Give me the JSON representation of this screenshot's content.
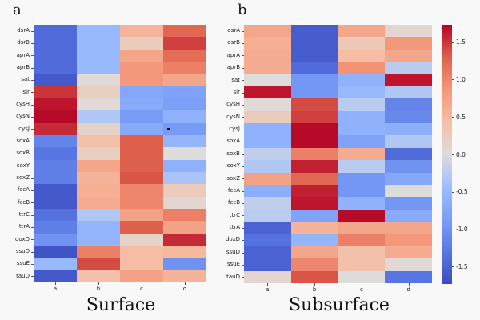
{
  "figure": {
    "background": "#f8f8f8"
  },
  "chart_data": [
    {
      "type": "heatmap",
      "panel_label": "a",
      "title": "Surface",
      "columns": [
        "a",
        "b",
        "c",
        "d"
      ],
      "rows": [
        "dsrA",
        "dsrB",
        "aprA",
        "aprB",
        "sat",
        "sir",
        "cysH",
        "cysN",
        "cysJ",
        "soxA",
        "soxB",
        "soxY",
        "soxZ",
        "fccA",
        "fccB",
        "ttrC",
        "ttrA",
        "doxD",
        "ssuD",
        "ssuE",
        "tauD"
      ],
      "values": [
        [
          -1.4,
          -0.5,
          0.55,
          1.25
        ],
        [
          -1.4,
          -0.5,
          0.25,
          1.45
        ],
        [
          -1.4,
          -0.5,
          0.7,
          1.2
        ],
        [
          -1.4,
          -0.5,
          0.85,
          1.05
        ],
        [
          -1.6,
          0.05,
          0.85,
          0.7
        ],
        [
          1.5,
          0.2,
          -0.75,
          -0.8
        ],
        [
          1.65,
          0.05,
          -0.7,
          -0.85
        ],
        [
          1.7,
          -0.3,
          -0.9,
          -0.6
        ],
        [
          1.55,
          0.15,
          -0.7,
          -0.9
        ],
        [
          -1.15,
          0.4,
          1.3,
          -0.55
        ],
        [
          -1.3,
          0.2,
          1.3,
          0.0
        ],
        [
          -1.2,
          0.7,
          1.3,
          -0.6
        ],
        [
          -1.2,
          0.55,
          1.35,
          -0.35
        ],
        [
          -1.6,
          0.6,
          1.0,
          0.25
        ],
        [
          -1.6,
          0.65,
          1.0,
          0.1
        ],
        [
          -1.35,
          -0.3,
          0.75,
          1.05
        ],
        [
          -1.2,
          -0.55,
          1.3,
          0.75
        ],
        [
          -1.0,
          -0.55,
          0.15,
          1.55
        ],
        [
          -1.65,
          1.05,
          0.45,
          0.5
        ],
        [
          -0.5,
          1.4,
          0.45,
          -1.0
        ],
        [
          -1.6,
          0.4,
          0.75,
          0.55
        ]
      ],
      "colormap": "coolwarm",
      "vmin": -1.73,
      "vmax": 1.73,
      "marker_dot": {
        "row": "cysJ",
        "column": "d"
      }
    },
    {
      "type": "heatmap",
      "panel_label": "b",
      "title": "Subsurface",
      "columns": [
        "a",
        "b",
        "c",
        "d"
      ],
      "rows": [
        "dsrA",
        "dsrB",
        "aprA",
        "aprB",
        "sat",
        "sir",
        "cysH",
        "cysN",
        "cysJ",
        "soxA",
        "soxB",
        "soxY",
        "soxZ",
        "fccA",
        "fccB",
        "ttrC",
        "ttrA",
        "doxD",
        "ssuD",
        "ssuE",
        "tauD"
      ],
      "values": [
        [
          0.7,
          -1.55,
          0.7,
          0.1
        ],
        [
          0.6,
          -1.55,
          0.3,
          0.85
        ],
        [
          0.65,
          -1.55,
          0.45,
          0.7
        ],
        [
          0.65,
          -1.4,
          0.9,
          -0.25
        ],
        [
          0.0,
          -0.95,
          -0.6,
          1.65
        ],
        [
          1.65,
          -0.95,
          -0.5,
          -0.3
        ],
        [
          0.05,
          1.4,
          -0.25,
          -1.15
        ],
        [
          0.25,
          1.45,
          -0.6,
          -1.1
        ],
        [
          -0.6,
          1.7,
          -0.6,
          -0.65
        ],
        [
          -0.6,
          1.7,
          -0.8,
          -0.3
        ],
        [
          -0.2,
          1.05,
          0.65,
          -1.4
        ],
        [
          -0.3,
          1.6,
          -0.25,
          -1.0
        ],
        [
          0.75,
          1.25,
          -0.95,
          -0.75
        ],
        [
          -0.65,
          1.6,
          -0.95,
          0.0
        ],
        [
          -0.2,
          1.65,
          -0.6,
          -0.95
        ],
        [
          -0.25,
          -0.8,
          1.7,
          -0.7
        ],
        [
          -1.5,
          0.55,
          0.7,
          0.7
        ],
        [
          -1.35,
          -0.55,
          1.05,
          0.85
        ],
        [
          -1.5,
          0.7,
          0.4,
          0.65
        ],
        [
          -1.5,
          1.0,
          0.4,
          0.05
        ],
        [
          0.1,
          1.35,
          0.0,
          -1.3
        ]
      ],
      "colormap": "coolwarm",
      "vmin": -1.73,
      "vmax": 1.73
    }
  ],
  "colorbar": {
    "tick_labels": [
      "1.5",
      "1.0",
      "0.5",
      "0.0",
      "-0.5",
      "-1.0",
      "-1.5"
    ],
    "tick_values": [
      1.5,
      1.0,
      0.5,
      0.0,
      -0.5,
      -1.0,
      -1.5
    ],
    "vmin": -1.73,
    "vmax": 1.73,
    "color_min": "#3b4cc0",
    "color_mid": "#dddddd",
    "color_max": "#b40426"
  }
}
